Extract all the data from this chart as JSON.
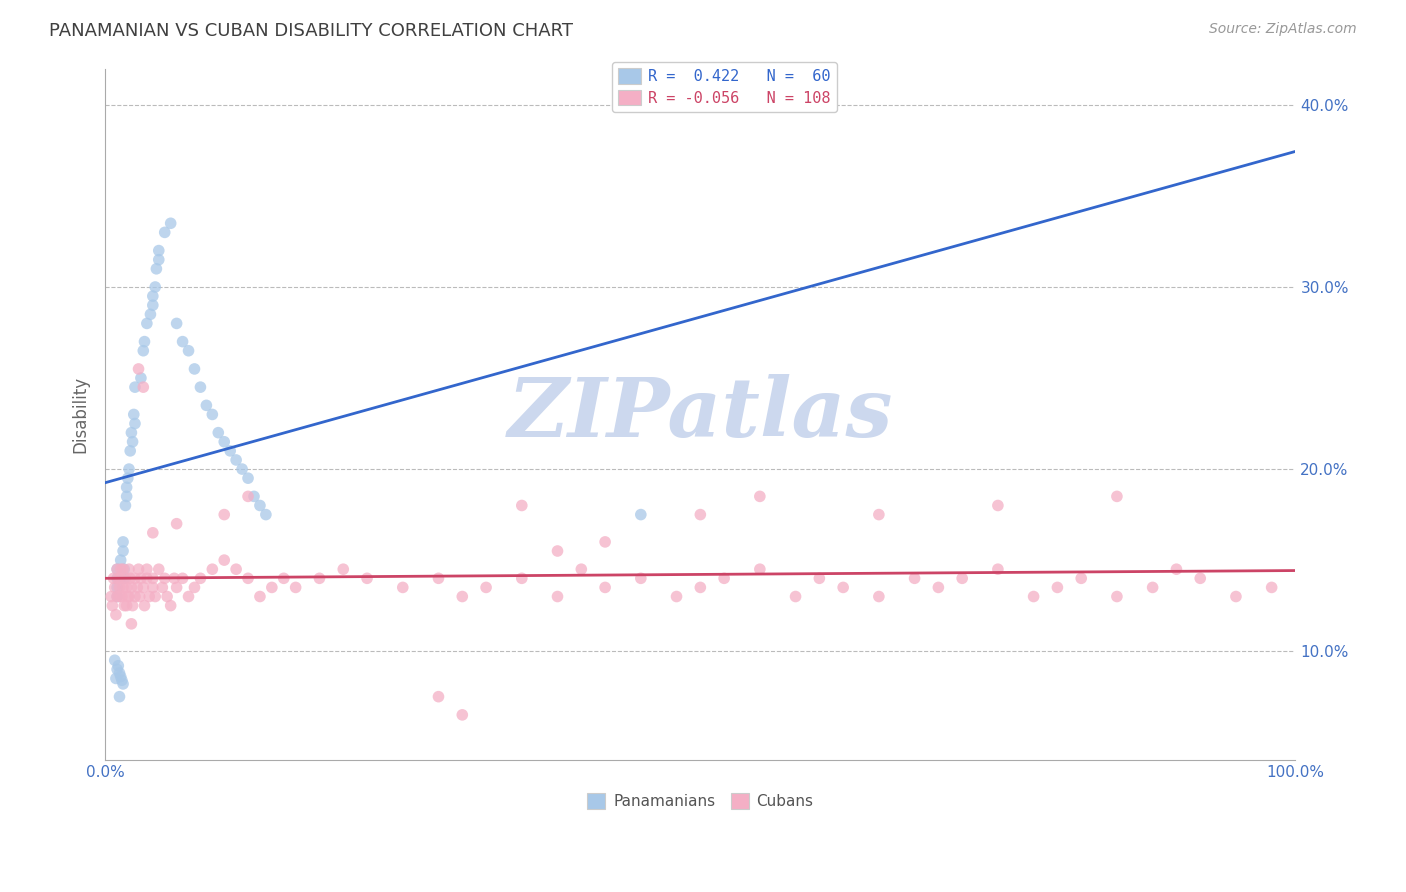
{
  "title": "PANAMANIAN VS CUBAN DISABILITY CORRELATION CHART",
  "source": "Source: ZipAtlas.com",
  "ylabel": "Disability",
  "xlim": [
    0.0,
    1.0
  ],
  "ylim": [
    0.04,
    0.42
  ],
  "x_ticks": [
    0.0,
    0.1,
    0.2,
    0.3,
    0.4,
    0.5,
    0.6,
    0.7,
    0.8,
    0.9,
    1.0
  ],
  "y_ticks": [
    0.1,
    0.2,
    0.3,
    0.4
  ],
  "y_tick_labels": [
    "10.0%",
    "20.0%",
    "30.0%",
    "40.0%"
  ],
  "legend_blue_label": "R =  0.422   N =  60",
  "legend_pink_label": "R = -0.056   N = 108",
  "watermark": "ZIPatlas",
  "blue_color": "#a8c8e8",
  "pink_color": "#f4afc5",
  "blue_line_color": "#3366cc",
  "pink_line_color": "#cc4466",
  "title_color": "#404040",
  "axis_label_color": "#4472c4",
  "watermark_color": "#ccd8ee",
  "pan_x": [
    0.01,
    0.01,
    0.01,
    0.01,
    0.012,
    0.013,
    0.015,
    0.015,
    0.016,
    0.016,
    0.017,
    0.018,
    0.018,
    0.019,
    0.02,
    0.021,
    0.022,
    0.023,
    0.024,
    0.025,
    0.025,
    0.03,
    0.032,
    0.033,
    0.035,
    0.038,
    0.04,
    0.04,
    0.042,
    0.043,
    0.045,
    0.045,
    0.05,
    0.055,
    0.06,
    0.065,
    0.07,
    0.075,
    0.08,
    0.085,
    0.09,
    0.095,
    0.1,
    0.105,
    0.11,
    0.115,
    0.12,
    0.125,
    0.13,
    0.135,
    0.008,
    0.009,
    0.01,
    0.011,
    0.012,
    0.013,
    0.014,
    0.015,
    0.45,
    0.012
  ],
  "pan_y": [
    0.145,
    0.14,
    0.135,
    0.13,
    0.14,
    0.15,
    0.155,
    0.16,
    0.145,
    0.14,
    0.18,
    0.19,
    0.185,
    0.195,
    0.2,
    0.21,
    0.22,
    0.215,
    0.23,
    0.225,
    0.245,
    0.25,
    0.265,
    0.27,
    0.28,
    0.285,
    0.29,
    0.295,
    0.3,
    0.31,
    0.315,
    0.32,
    0.33,
    0.335,
    0.28,
    0.27,
    0.265,
    0.255,
    0.245,
    0.235,
    0.23,
    0.22,
    0.215,
    0.21,
    0.205,
    0.2,
    0.195,
    0.185,
    0.18,
    0.175,
    0.095,
    0.085,
    0.09,
    0.092,
    0.088,
    0.086,
    0.084,
    0.082,
    0.175,
    0.075
  ],
  "cub_x": [
    0.005,
    0.006,
    0.007,
    0.008,
    0.009,
    0.01,
    0.01,
    0.011,
    0.012,
    0.012,
    0.013,
    0.013,
    0.014,
    0.015,
    0.015,
    0.016,
    0.017,
    0.018,
    0.019,
    0.02,
    0.02,
    0.021,
    0.022,
    0.023,
    0.025,
    0.025,
    0.027,
    0.028,
    0.029,
    0.03,
    0.032,
    0.033,
    0.035,
    0.035,
    0.037,
    0.04,
    0.04,
    0.042,
    0.045,
    0.048,
    0.05,
    0.052,
    0.055,
    0.058,
    0.06,
    0.065,
    0.07,
    0.075,
    0.08,
    0.09,
    0.1,
    0.11,
    0.12,
    0.13,
    0.14,
    0.15,
    0.16,
    0.18,
    0.2,
    0.22,
    0.25,
    0.28,
    0.3,
    0.32,
    0.35,
    0.38,
    0.4,
    0.42,
    0.45,
    0.48,
    0.5,
    0.52,
    0.55,
    0.58,
    0.6,
    0.62,
    0.65,
    0.68,
    0.7,
    0.72,
    0.75,
    0.78,
    0.8,
    0.82,
    0.85,
    0.88,
    0.9,
    0.92,
    0.95,
    0.98,
    0.1,
    0.12,
    0.35,
    0.5,
    0.55,
    0.65,
    0.75,
    0.85,
    0.04,
    0.06,
    0.028,
    0.032,
    0.018,
    0.022,
    0.38,
    0.42,
    0.28,
    0.3
  ],
  "cub_y": [
    0.13,
    0.125,
    0.14,
    0.135,
    0.12,
    0.145,
    0.13,
    0.14,
    0.135,
    0.13,
    0.145,
    0.14,
    0.13,
    0.135,
    0.145,
    0.125,
    0.14,
    0.135,
    0.13,
    0.145,
    0.13,
    0.14,
    0.135,
    0.125,
    0.14,
    0.13,
    0.135,
    0.145,
    0.13,
    0.14,
    0.135,
    0.125,
    0.14,
    0.145,
    0.13,
    0.135,
    0.14,
    0.13,
    0.145,
    0.135,
    0.14,
    0.13,
    0.125,
    0.14,
    0.135,
    0.14,
    0.13,
    0.135,
    0.14,
    0.145,
    0.15,
    0.145,
    0.14,
    0.13,
    0.135,
    0.14,
    0.135,
    0.14,
    0.145,
    0.14,
    0.135,
    0.14,
    0.13,
    0.135,
    0.14,
    0.13,
    0.145,
    0.135,
    0.14,
    0.13,
    0.135,
    0.14,
    0.145,
    0.13,
    0.14,
    0.135,
    0.13,
    0.14,
    0.135,
    0.14,
    0.145,
    0.13,
    0.135,
    0.14,
    0.13,
    0.135,
    0.145,
    0.14,
    0.13,
    0.135,
    0.175,
    0.185,
    0.18,
    0.175,
    0.185,
    0.175,
    0.18,
    0.185,
    0.165,
    0.17,
    0.255,
    0.245,
    0.125,
    0.115,
    0.155,
    0.16,
    0.075,
    0.065
  ]
}
